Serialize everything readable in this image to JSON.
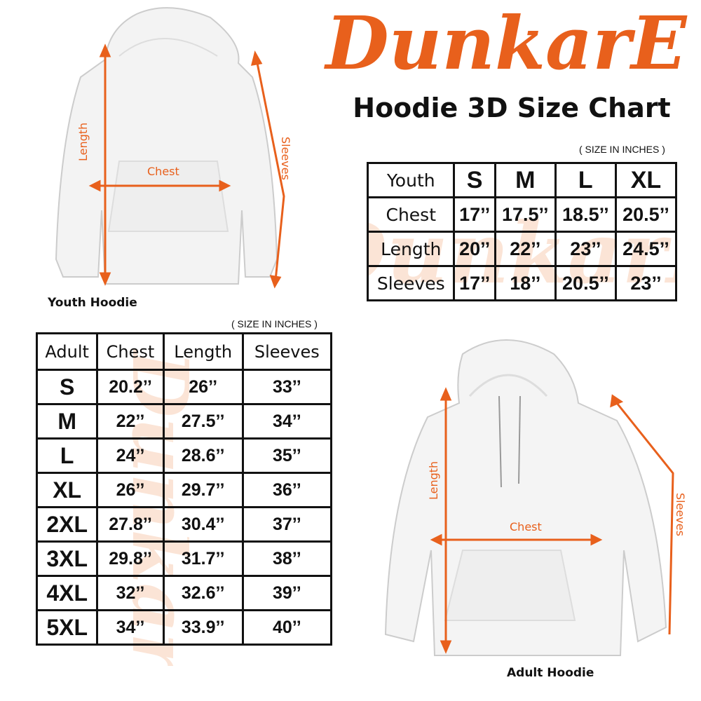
{
  "brand": {
    "logo_text": "DunkarE",
    "color": "#e8601c",
    "watermark_color": "#f4b48c"
  },
  "title": "Hoodie 3D Size Chart",
  "youth": {
    "units": "( SIZE IN INCHES )",
    "header": [
      "Youth",
      "S",
      "M",
      "L",
      "XL"
    ],
    "rows": [
      {
        "label": "Chest",
        "values": [
          "17’’",
          "17.5’’",
          "18.5’’",
          "20.5’’"
        ]
      },
      {
        "label": "Length",
        "values": [
          "20’’",
          "22’’",
          "23’’",
          "24.5’’"
        ]
      },
      {
        "label": "Sleeves",
        "values": [
          "17’’",
          "18’’",
          "20.5’’",
          "23’’"
        ]
      }
    ],
    "image_label": "Youth Hoodie",
    "measure_labels": {
      "length": "Length",
      "chest": "Chest",
      "sleeves": "Sleeves"
    }
  },
  "adult": {
    "units": "( SIZE IN INCHES )",
    "header": [
      "Adult",
      "Chest",
      "Length",
      "Sleeves"
    ],
    "rows": [
      {
        "label": "S",
        "values": [
          "20.2’’",
          "26’’",
          "33’’"
        ]
      },
      {
        "label": "M",
        "values": [
          "22’’",
          "27.5’’",
          "34’’"
        ]
      },
      {
        "label": "L",
        "values": [
          "24’’",
          "28.6’’",
          "35’’"
        ]
      },
      {
        "label": "XL",
        "values": [
          "26’’",
          "29.7’’",
          "36’’"
        ]
      },
      {
        "label": "2XL",
        "values": [
          "27.8’’",
          "30.4’’",
          "37’’"
        ]
      },
      {
        "label": "3XL",
        "values": [
          "29.8’’",
          "31.7’’",
          "38’’"
        ]
      },
      {
        "label": "4XL",
        "values": [
          "32’’",
          "32.6’’",
          "39’’"
        ]
      },
      {
        "label": "5XL",
        "values": [
          "34’’",
          "33.9’’",
          "40’’"
        ]
      }
    ],
    "image_label": "Adult Hoodie",
    "measure_labels": {
      "length": "Length",
      "chest": "Chest",
      "sleeves": "Sleeves"
    }
  }
}
